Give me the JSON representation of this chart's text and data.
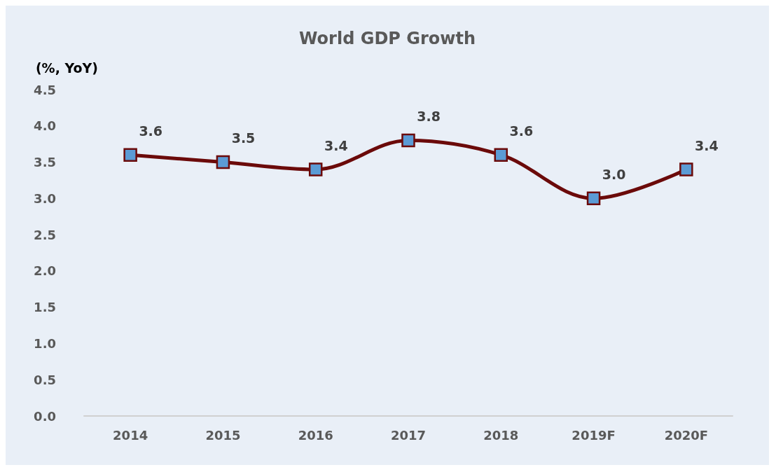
{
  "chart_data": {
    "type": "line",
    "title": "World GDP Growth",
    "ylabel": "(%, YoY)",
    "categories": [
      "2014",
      "2015",
      "2016",
      "2017",
      "2018",
      "2019F",
      "2020F"
    ],
    "series": [
      {
        "color": "#6b0a0a",
        "values": [
          3.6,
          3.5,
          3.4,
          3.8,
          3.6,
          3.0,
          3.4
        ],
        "value_labels": [
          "3.6",
          "3.5",
          "3.4",
          "3.8",
          "3.6",
          "3.0",
          "3.4"
        ]
      }
    ],
    "ylim": [
      0,
      4.5
    ],
    "yticks": [
      {
        "value": 0,
        "label": "0.0"
      },
      0.5,
      {
        "value": 1,
        "label": "1.0"
      },
      1.5,
      {
        "value": 2,
        "label": "2.0"
      },
      2.5,
      {
        "value": 3,
        "label": "3.0"
      },
      3.5,
      {
        "value": 4,
        "label": "4.0"
      },
      4.5
    ],
    "grid": false,
    "marker": "square",
    "line_style": "solid"
  }
}
